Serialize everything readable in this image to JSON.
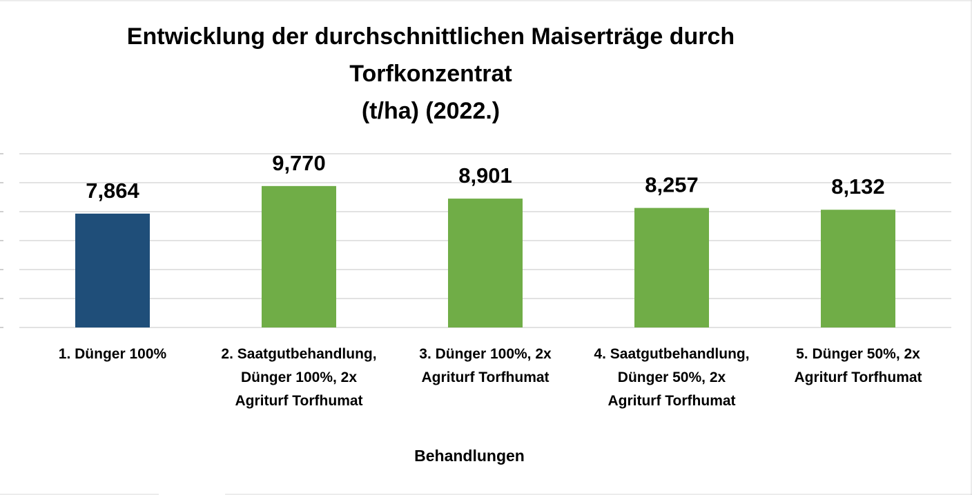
{
  "chart_data": {
    "type": "bar",
    "title_lines": [
      "Entwicklung der durchschnittlichen Maiserträge durch",
      "Torfkonzentrat",
      "(t/ha) (2022.)"
    ],
    "xlabel": "Behandlungen",
    "ylabel": "",
    "ylim": [
      0,
      12
    ],
    "grid": true,
    "legend": "none",
    "categories": [
      [
        "1. Dünger 100%"
      ],
      [
        "2. Saatgutbehandlung,",
        "Dünger 100%, 2x",
        "Agriturf Torfhumat"
      ],
      [
        "3. Dünger 100%, 2x",
        "Agriturf Torfhumat"
      ],
      [
        "4. Saatgutbehandlung,",
        "Dünger 50%, 2x",
        "Agriturf Torfhumat"
      ],
      [
        "5. Dünger 50%, 2x",
        "Agriturf Torfhumat"
      ]
    ],
    "values": [
      7.864,
      9.77,
      8.901,
      8.257,
      8.132
    ],
    "value_labels": [
      "7,864",
      "9,770",
      "8,901",
      "8,257",
      "8,132"
    ],
    "colors": [
      "#1f4e79",
      "#70ad47",
      "#70ad47",
      "#70ad47",
      "#70ad47"
    ]
  }
}
